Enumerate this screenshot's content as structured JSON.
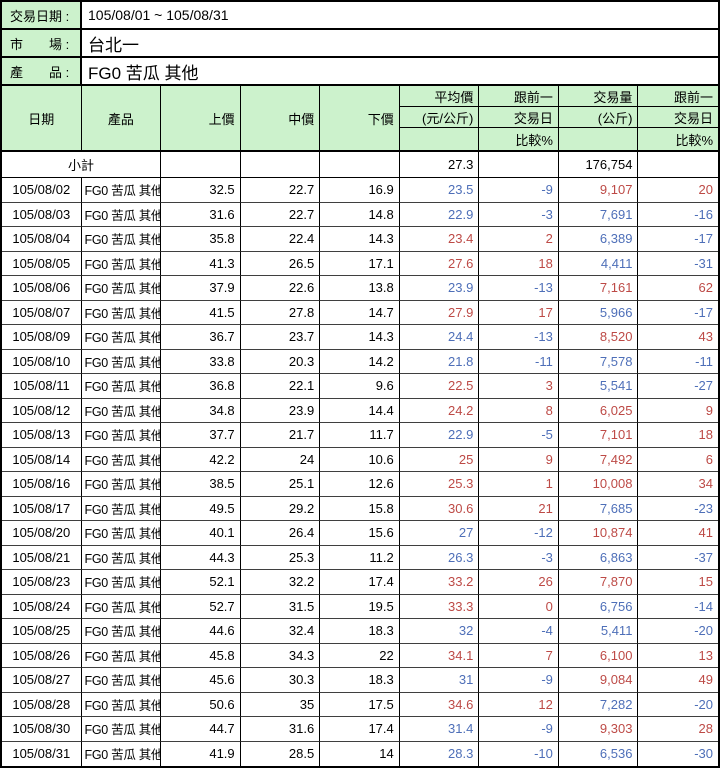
{
  "colors": {
    "header_green": "#ccf2cc",
    "increase_red": "#bd4a46",
    "decrease_blue": "#4e6fb8",
    "grid_line": "#000000"
  },
  "info": {
    "rows": [
      {
        "label": "交易日期 :",
        "value": "105/08/01 ~ 105/08/31"
      },
      {
        "label": "市　　場 :",
        "value": "台北一"
      },
      {
        "label": "產　　品 :",
        "value": "FG0 苦瓜 其他"
      }
    ]
  },
  "table": {
    "header": {
      "date": "日期",
      "product": "產品",
      "high": "上價",
      "mid": "中價",
      "low": "下價",
      "avg_line1": "平均價",
      "avg_line2": "(元/公斤)",
      "avg_chg_line1": "跟前一",
      "avg_chg_line2": "交易日",
      "avg_chg_line3": "比較%",
      "vol_line1": "交易量",
      "vol_line2": "(公斤)",
      "vol_chg_line1": "跟前一",
      "vol_chg_line2": "交易日",
      "vol_chg_line3": "比較%"
    },
    "subtotal": {
      "label": "小計",
      "avg": "27.3",
      "volume": "176,754"
    },
    "rows": [
      {
        "date": "105/08/02",
        "product": "FG0 苦瓜 其他",
        "high": "32.5",
        "mid": "22.7",
        "low": "16.9",
        "avg": "23.5",
        "avg_pct": "-9",
        "avg_dir": "down",
        "volume": "9,107",
        "vol_pct": "20",
        "vol_dir": "up"
      },
      {
        "date": "105/08/03",
        "product": "FG0 苦瓜 其他",
        "high": "31.6",
        "mid": "22.7",
        "low": "14.8",
        "avg": "22.9",
        "avg_pct": "-3",
        "avg_dir": "down",
        "volume": "7,691",
        "vol_pct": "-16",
        "vol_dir": "down"
      },
      {
        "date": "105/08/04",
        "product": "FG0 苦瓜 其他",
        "high": "35.8",
        "mid": "22.4",
        "low": "14.3",
        "avg": "23.4",
        "avg_pct": "2",
        "avg_dir": "up",
        "volume": "6,389",
        "vol_pct": "-17",
        "vol_dir": "down"
      },
      {
        "date": "105/08/05",
        "product": "FG0 苦瓜 其他",
        "high": "41.3",
        "mid": "26.5",
        "low": "17.1",
        "avg": "27.6",
        "avg_pct": "18",
        "avg_dir": "up",
        "volume": "4,411",
        "vol_pct": "-31",
        "vol_dir": "down"
      },
      {
        "date": "105/08/06",
        "product": "FG0 苦瓜 其他",
        "high": "37.9",
        "mid": "22.6",
        "low": "13.8",
        "avg": "23.9",
        "avg_pct": "-13",
        "avg_dir": "down",
        "volume": "7,161",
        "vol_pct": "62",
        "vol_dir": "up"
      },
      {
        "date": "105/08/07",
        "product": "FG0 苦瓜 其他",
        "high": "41.5",
        "mid": "27.8",
        "low": "14.7",
        "avg": "27.9",
        "avg_pct": "17",
        "avg_dir": "up",
        "volume": "5,966",
        "vol_pct": "-17",
        "vol_dir": "down"
      },
      {
        "date": "105/08/09",
        "product": "FG0 苦瓜 其他",
        "high": "36.7",
        "mid": "23.7",
        "low": "14.3",
        "avg": "24.4",
        "avg_pct": "-13",
        "avg_dir": "down",
        "volume": "8,520",
        "vol_pct": "43",
        "vol_dir": "up"
      },
      {
        "date": "105/08/10",
        "product": "FG0 苦瓜 其他",
        "high": "33.8",
        "mid": "20.3",
        "low": "14.2",
        "avg": "21.8",
        "avg_pct": "-11",
        "avg_dir": "down",
        "volume": "7,578",
        "vol_pct": "-11",
        "vol_dir": "down"
      },
      {
        "date": "105/08/11",
        "product": "FG0 苦瓜 其他",
        "high": "36.8",
        "mid": "22.1",
        "low": "9.6",
        "avg": "22.5",
        "avg_pct": "3",
        "avg_dir": "up",
        "volume": "5,541",
        "vol_pct": "-27",
        "vol_dir": "down"
      },
      {
        "date": "105/08/12",
        "product": "FG0 苦瓜 其他",
        "high": "34.8",
        "mid": "23.9",
        "low": "14.4",
        "avg": "24.2",
        "avg_pct": "8",
        "avg_dir": "up",
        "volume": "6,025",
        "vol_pct": "9",
        "vol_dir": "up"
      },
      {
        "date": "105/08/13",
        "product": "FG0 苦瓜 其他",
        "high": "37.7",
        "mid": "21.7",
        "low": "11.7",
        "avg": "22.9",
        "avg_pct": "-5",
        "avg_dir": "down",
        "volume": "7,101",
        "vol_pct": "18",
        "vol_dir": "up"
      },
      {
        "date": "105/08/14",
        "product": "FG0 苦瓜 其他",
        "high": "42.2",
        "mid": "24",
        "low": "10.6",
        "avg": "25",
        "avg_pct": "9",
        "avg_dir": "up",
        "volume": "7,492",
        "vol_pct": "6",
        "vol_dir": "up"
      },
      {
        "date": "105/08/16",
        "product": "FG0 苦瓜 其他",
        "high": "38.5",
        "mid": "25.1",
        "low": "12.6",
        "avg": "25.3",
        "avg_pct": "1",
        "avg_dir": "up",
        "volume": "10,008",
        "vol_pct": "34",
        "vol_dir": "up"
      },
      {
        "date": "105/08/17",
        "product": "FG0 苦瓜 其他",
        "high": "49.5",
        "mid": "29.2",
        "low": "15.8",
        "avg": "30.6",
        "avg_pct": "21",
        "avg_dir": "up",
        "volume": "7,685",
        "vol_pct": "-23",
        "vol_dir": "down"
      },
      {
        "date": "105/08/20",
        "product": "FG0 苦瓜 其他",
        "high": "40.1",
        "mid": "26.4",
        "low": "15.6",
        "avg": "27",
        "avg_pct": "-12",
        "avg_dir": "down",
        "volume": "10,874",
        "vol_pct": "41",
        "vol_dir": "up"
      },
      {
        "date": "105/08/21",
        "product": "FG0 苦瓜 其他",
        "high": "44.3",
        "mid": "25.3",
        "low": "11.2",
        "avg": "26.3",
        "avg_pct": "-3",
        "avg_dir": "down",
        "volume": "6,863",
        "vol_pct": "-37",
        "vol_dir": "down"
      },
      {
        "date": "105/08/23",
        "product": "FG0 苦瓜 其他",
        "high": "52.1",
        "mid": "32.2",
        "low": "17.4",
        "avg": "33.2",
        "avg_pct": "26",
        "avg_dir": "up",
        "volume": "7,870",
        "vol_pct": "15",
        "vol_dir": "up"
      },
      {
        "date": "105/08/24",
        "product": "FG0 苦瓜 其他",
        "high": "52.7",
        "mid": "31.5",
        "low": "19.5",
        "avg": "33.3",
        "avg_pct": "0",
        "avg_dir": "up",
        "volume": "6,756",
        "vol_pct": "-14",
        "vol_dir": "down"
      },
      {
        "date": "105/08/25",
        "product": "FG0 苦瓜 其他",
        "high": "44.6",
        "mid": "32.4",
        "low": "18.3",
        "avg": "32",
        "avg_pct": "-4",
        "avg_dir": "down",
        "volume": "5,411",
        "vol_pct": "-20",
        "vol_dir": "down"
      },
      {
        "date": "105/08/26",
        "product": "FG0 苦瓜 其他",
        "high": "45.8",
        "mid": "34.3",
        "low": "22",
        "avg": "34.1",
        "avg_pct": "7",
        "avg_dir": "up",
        "volume": "6,100",
        "vol_pct": "13",
        "vol_dir": "up"
      },
      {
        "date": "105/08/27",
        "product": "FG0 苦瓜 其他",
        "high": "45.6",
        "mid": "30.3",
        "low": "18.3",
        "avg": "31",
        "avg_pct": "-9",
        "avg_dir": "down",
        "volume": "9,084",
        "vol_pct": "49",
        "vol_dir": "up"
      },
      {
        "date": "105/08/28",
        "product": "FG0 苦瓜 其他",
        "high": "50.6",
        "mid": "35",
        "low": "17.5",
        "avg": "34.6",
        "avg_pct": "12",
        "avg_dir": "up",
        "volume": "7,282",
        "vol_pct": "-20",
        "vol_dir": "down"
      },
      {
        "date": "105/08/30",
        "product": "FG0 苦瓜 其他",
        "high": "44.7",
        "mid": "31.6",
        "low": "17.4",
        "avg": "31.4",
        "avg_pct": "-9",
        "avg_dir": "down",
        "volume": "9,303",
        "vol_pct": "28",
        "vol_dir": "up"
      },
      {
        "date": "105/08/31",
        "product": "FG0 苦瓜 其他",
        "high": "41.9",
        "mid": "28.5",
        "low": "14",
        "avg": "28.3",
        "avg_pct": "-10",
        "avg_dir": "down",
        "volume": "6,536",
        "vol_pct": "-30",
        "vol_dir": "down"
      }
    ]
  }
}
